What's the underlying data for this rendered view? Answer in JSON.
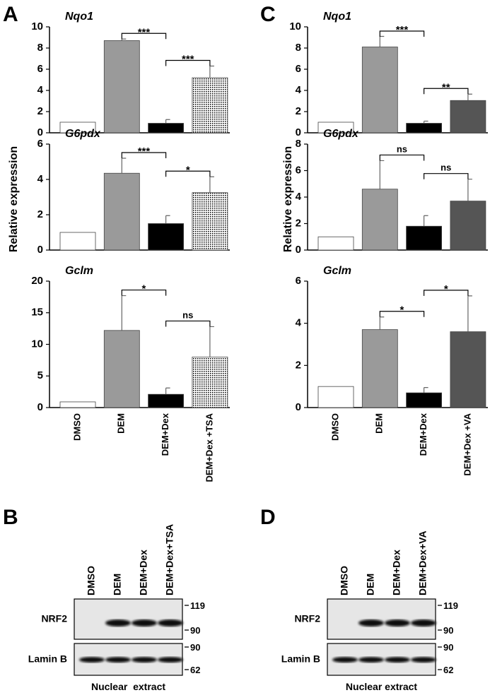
{
  "chart_data": [
    {
      "type": "bar",
      "title": "Nqo1",
      "categories": [
        null,
        null,
        null,
        null
      ],
      "values": [
        1,
        8.7,
        0.9,
        5.2
      ],
      "errors": [
        0,
        0.15,
        0.35,
        1.1
      ],
      "colors": [
        "#ffffff",
        "#9a9a9a",
        "#000000",
        "dots"
      ],
      "ylim": [
        0,
        10
      ],
      "yticks": [
        0,
        2,
        4,
        6,
        8,
        10
      ],
      "annotations": [
        {
          "text": "***",
          "from": 1,
          "to": 2
        },
        {
          "text": "***",
          "from": 2,
          "to": 3
        }
      ]
    },
    {
      "type": "bar",
      "title": "G6pdx",
      "categories": [
        null,
        null,
        null,
        null
      ],
      "values": [
        1,
        4.35,
        1.5,
        3.25
      ],
      "errors": [
        0,
        0.85,
        0.45,
        0.9
      ],
      "colors": [
        "#ffffff",
        "#9a9a9a",
        "#000000",
        "dots"
      ],
      "ylim": [
        0,
        6
      ],
      "yticks": [
        0,
        2,
        4,
        6
      ],
      "annotations": [
        {
          "text": "***",
          "from": 1,
          "to": 2
        },
        {
          "text": "*",
          "from": 2,
          "to": 3
        }
      ]
    },
    {
      "type": "bar",
      "title": "Gclm",
      "categories": [
        "DMSO",
        "DEM",
        "DEM+Dex",
        "DEM+Dex +TSA"
      ],
      "values": [
        0.9,
        12.2,
        2.1,
        8.0
      ],
      "errors": [
        0,
        5.5,
        1.0,
        4.8
      ],
      "colors": [
        "#ffffff",
        "#9a9a9a",
        "#000000",
        "dots"
      ],
      "ylim": [
        0,
        20
      ],
      "yticks": [
        0,
        5,
        10,
        15,
        20
      ],
      "annotations": [
        {
          "text": "*",
          "from": 1,
          "to": 2
        },
        {
          "text": "ns",
          "from": 2,
          "to": 3
        }
      ]
    },
    {
      "type": "bar",
      "title": "Nqo1",
      "categories": [
        null,
        null,
        null,
        null
      ],
      "values": [
        1,
        8.1,
        0.9,
        3.05
      ],
      "errors": [
        0,
        1.0,
        0.2,
        0.6
      ],
      "colors": [
        "#ffffff",
        "#9a9a9a",
        "#000000",
        "#555555"
      ],
      "ylim": [
        0,
        10
      ],
      "yticks": [
        0,
        2,
        4,
        6,
        8,
        10
      ],
      "annotations": [
        {
          "text": "***",
          "from": 1,
          "to": 2
        },
        {
          "text": "**",
          "from": 2,
          "to": 3
        }
      ]
    },
    {
      "type": "bar",
      "title": "G6pdx",
      "categories": [
        null,
        null,
        null,
        null
      ],
      "values": [
        1,
        4.6,
        1.8,
        3.7
      ],
      "errors": [
        0,
        2.15,
        0.8,
        1.65
      ],
      "colors": [
        "#ffffff",
        "#9a9a9a",
        "#000000",
        "#555555"
      ],
      "ylim": [
        0,
        8
      ],
      "yticks": [
        0,
        2,
        4,
        6,
        8
      ],
      "annotations": [
        {
          "text": "ns",
          "from": 1,
          "to": 2
        },
        {
          "text": "ns",
          "from": 2,
          "to": 3
        }
      ]
    },
    {
      "type": "bar",
      "title": "Gclm",
      "categories": [
        "DMSO",
        "DEM",
        "DEM+Dex",
        "DEM+Dex +VA"
      ],
      "values": [
        1,
        3.7,
        0.7,
        3.6
      ],
      "errors": [
        0,
        0.6,
        0.25,
        1.7
      ],
      "colors": [
        "#ffffff",
        "#9a9a9a",
        "#000000",
        "#555555"
      ],
      "ylim": [
        0,
        6
      ],
      "yticks": [
        0,
        2,
        4,
        6
      ],
      "annotations": [
        {
          "text": "*",
          "from": 1,
          "to": 2
        },
        {
          "text": "*",
          "from": 2,
          "to": 3
        }
      ]
    }
  ],
  "panel_letters": [
    "A",
    "C",
    "B",
    "D"
  ],
  "y_labels": [
    "Relative expression",
    "Relative expression"
  ],
  "blots": [
    {
      "lanes": [
        "DMSO",
        "DEM",
        "DEM+Dex",
        "DEM+Dex+TSA"
      ],
      "rows": [
        "NRF2",
        "Lamin B"
      ],
      "markers": [
        [
          "119",
          "90"
        ],
        [
          "90",
          "62"
        ]
      ],
      "caption": "Nuclear  extract"
    },
    {
      "lanes": [
        "DMSO",
        "DEM",
        "DEM+Dex",
        "DEM+Dex+VA"
      ],
      "rows": [
        "NRF2",
        "Lamin B"
      ],
      "markers": [
        [
          "119",
          "90"
        ],
        [
          "90",
          "62"
        ]
      ],
      "caption": "Nuclear extract"
    }
  ]
}
